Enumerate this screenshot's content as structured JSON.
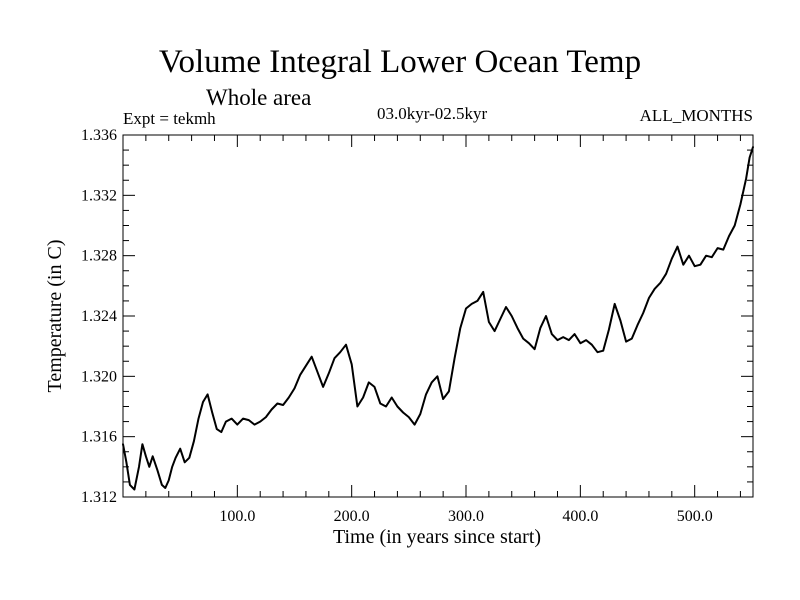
{
  "colors": {
    "background": "#ffffff",
    "foreground": "#000000"
  },
  "chart_data": {
    "type": "line",
    "title": "Volume Integral Lower Ocean Temp",
    "subtitle": "Whole area",
    "annotations": {
      "experiment": "Expt = tekmh",
      "period": "03.0kyr-02.5kyr",
      "months": "ALL_MONTHS"
    },
    "xlabel": "Time (in years since start)",
    "ylabel": "Temperature (in C)",
    "xlim": [
      0,
      551
    ],
    "ylim": [
      1.312,
      1.336
    ],
    "grid": false,
    "legend": "none",
    "x_ticks": {
      "major": [
        100,
        200,
        300,
        400,
        500
      ],
      "minor_step": 20,
      "labels": [
        "100.0",
        "200.0",
        "300.0",
        "400.0",
        "500.0"
      ]
    },
    "y_ticks": {
      "major": [
        1.312,
        1.316,
        1.32,
        1.324,
        1.328,
        1.332,
        1.336
      ],
      "minor_step": 0.001,
      "labels": [
        "1.312",
        "1.316",
        "1.320",
        "1.324",
        "1.328",
        "1.332",
        "1.336"
      ]
    },
    "series": [
      {
        "name": "Volume Integral Lower Ocean Temp",
        "x": [
          0,
          3,
          6,
          10,
          14,
          17,
          20,
          23,
          26,
          30,
          34,
          37,
          40,
          43,
          46,
          50,
          54,
          58,
          62,
          66,
          70,
          74,
          78,
          82,
          86,
          90,
          95,
          100,
          105,
          110,
          115,
          120,
          125,
          130,
          135,
          140,
          145,
          150,
          155,
          160,
          165,
          170,
          175,
          180,
          185,
          190,
          195,
          200,
          205,
          210,
          215,
          220,
          225,
          230,
          235,
          240,
          245,
          250,
          255,
          260,
          265,
          270,
          275,
          280,
          285,
          290,
          295,
          300,
          305,
          310,
          315,
          320,
          325,
          330,
          335,
          340,
          345,
          350,
          355,
          360,
          365,
          370,
          375,
          380,
          385,
          390,
          395,
          400,
          405,
          410,
          415,
          420,
          425,
          430,
          435,
          440,
          445,
          450,
          455,
          460,
          465,
          470,
          475,
          480,
          485,
          490,
          495,
          500,
          505,
          510,
          515,
          520,
          525,
          530,
          535,
          540,
          545,
          548,
          551
        ],
        "values": [
          1.3155,
          1.3143,
          1.3128,
          1.3125,
          1.314,
          1.3155,
          1.3147,
          1.314,
          1.3147,
          1.3138,
          1.3128,
          1.3126,
          1.3131,
          1.314,
          1.3146,
          1.3152,
          1.3143,
          1.3146,
          1.3157,
          1.3172,
          1.3183,
          1.3188,
          1.3176,
          1.3165,
          1.3163,
          1.317,
          1.3172,
          1.3168,
          1.3172,
          1.3171,
          1.3168,
          1.317,
          1.3173,
          1.3178,
          1.3182,
          1.3181,
          1.3186,
          1.3192,
          1.3201,
          1.3207,
          1.3213,
          1.3203,
          1.3193,
          1.3202,
          1.3212,
          1.3216,
          1.3221,
          1.3208,
          1.318,
          1.3186,
          1.3196,
          1.3193,
          1.3182,
          1.318,
          1.3186,
          1.318,
          1.3176,
          1.3173,
          1.3168,
          1.3175,
          1.3188,
          1.3196,
          1.32,
          1.3185,
          1.319,
          1.3212,
          1.3232,
          1.3245,
          1.3248,
          1.325,
          1.3256,
          1.3236,
          1.323,
          1.3238,
          1.3246,
          1.324,
          1.3232,
          1.3225,
          1.3222,
          1.3218,
          1.3232,
          1.324,
          1.3228,
          1.3224,
          1.3226,
          1.3224,
          1.3228,
          1.3222,
          1.3224,
          1.3221,
          1.3216,
          1.3217,
          1.3231,
          1.3248,
          1.3237,
          1.3223,
          1.3225,
          1.3234,
          1.3242,
          1.3252,
          1.3258,
          1.3262,
          1.3268,
          1.3278,
          1.3286,
          1.3274,
          1.328,
          1.3273,
          1.3274,
          1.328,
          1.3279,
          1.3285,
          1.3284,
          1.3293,
          1.33,
          1.3314,
          1.3331,
          1.3345,
          1.3352
        ]
      }
    ]
  }
}
